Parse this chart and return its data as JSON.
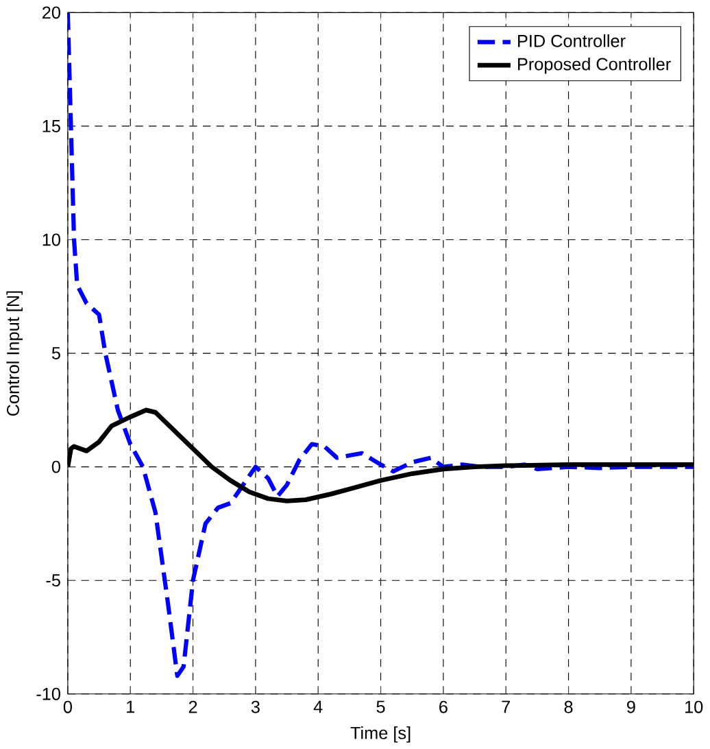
{
  "chart_data": {
    "type": "line",
    "xlabel": "Time [s]",
    "ylabel": "Control Input [N]",
    "xlim": [
      0,
      10
    ],
    "ylim": [
      -10,
      20
    ],
    "xticks": [
      0,
      1,
      2,
      3,
      4,
      5,
      6,
      7,
      8,
      9,
      10
    ],
    "yticks": [
      -10,
      -5,
      0,
      5,
      10,
      15,
      20
    ],
    "grid": true,
    "legend": "top right",
    "series": [
      {
        "name": "PID Controller",
        "color": "#0000ff",
        "line_style": "dashed",
        "x": [
          0,
          0.05,
          0.1,
          0.15,
          0.3,
          0.5,
          0.6,
          0.8,
          1,
          1.2,
          1.4,
          1.6,
          1.75,
          1.85,
          2,
          2.2,
          2.4,
          2.6,
          2.8,
          3,
          3.2,
          3.35,
          3.5,
          3.7,
          3.9,
          4.1,
          4.3,
          4.5,
          4.7,
          5,
          5.2,
          5.5,
          5.8,
          6,
          6.3,
          6.6,
          7,
          7.3,
          7.5,
          8,
          8.5,
          9,
          10
        ],
        "values": [
          20,
          15,
          10,
          8,
          7.2,
          6.7,
          5,
          2.5,
          1,
          0,
          -2,
          -6,
          -9.2,
          -8.8,
          -5,
          -2.5,
          -1.8,
          -1.6,
          -0.8,
          0,
          -0.5,
          -1.3,
          -0.8,
          0.3,
          1,
          0.9,
          0.4,
          0.5,
          0.6,
          0.1,
          -0.2,
          0.2,
          0.4,
          0,
          0.1,
          0,
          0,
          0.1,
          -0.1,
          0,
          -0.05,
          0,
          0
        ]
      },
      {
        "name": "Proposed Controller",
        "color": "#000000",
        "line_style": "solid",
        "x": [
          0,
          0.05,
          0.1,
          0.3,
          0.5,
          0.7,
          1,
          1.25,
          1.4,
          1.7,
          2,
          2.3,
          2.6,
          2.9,
          3.2,
          3.5,
          3.8,
          4.2,
          4.6,
          5,
          5.5,
          6,
          6.5,
          7,
          8,
          9,
          10
        ],
        "values": [
          0,
          0.8,
          0.9,
          0.7,
          1.1,
          1.8,
          2.2,
          2.5,
          2.4,
          1.6,
          0.8,
          0,
          -0.6,
          -1.1,
          -1.4,
          -1.5,
          -1.45,
          -1.2,
          -0.9,
          -0.6,
          -0.3,
          -0.1,
          0,
          0.05,
          0.1,
          0.1,
          0.1
        ]
      }
    ]
  }
}
